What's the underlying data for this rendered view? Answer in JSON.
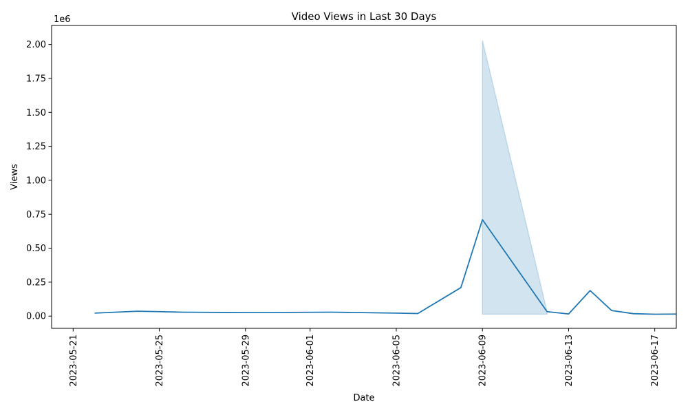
{
  "chart_data": {
    "type": "line",
    "title": "Video Views in Last 30 Days",
    "xlabel": "Date",
    "ylabel": "Views",
    "y_offset_label": "1e6",
    "x_tick_labels": [
      "2023-05-21",
      "2023-05-25",
      "2023-05-29",
      "2023-06-01",
      "2023-06-05",
      "2023-06-09",
      "2023-06-13",
      "2023-06-17"
    ],
    "y_tick_labels": [
      "0.00",
      "0.25",
      "0.50",
      "0.75",
      "1.00",
      "1.25",
      "1.50",
      "1.75",
      "2.00"
    ],
    "y_ticks": [
      0,
      250000,
      500000,
      750000,
      1000000,
      1250000,
      1500000,
      1750000,
      2000000
    ],
    "xlim": [
      "2023-05-20",
      "2023-06-18"
    ],
    "ylim": [
      -90000,
      2140000
    ],
    "grid": false,
    "series": [
      {
        "color": "#1f77b4",
        "points": [
          {
            "x": "2023-05-22",
            "y": 22000
          },
          {
            "x": "2023-05-24",
            "y": 36000
          },
          {
            "x": "2023-05-25",
            "y": 33000
          },
          {
            "x": "2023-05-26",
            "y": 29000
          },
          {
            "x": "2023-05-27",
            "y": 28000
          },
          {
            "x": "2023-05-28",
            "y": 27000
          },
          {
            "x": "2023-05-29",
            "y": 26000
          },
          {
            "x": "2023-05-30",
            "y": 26000
          },
          {
            "x": "2023-06-02",
            "y": 29000
          },
          {
            "x": "2023-06-05",
            "y": 22000
          },
          {
            "x": "2023-06-06",
            "y": 19000
          },
          {
            "x": "2023-06-08",
            "y": 210000
          },
          {
            "x": "2023-06-09",
            "y": 710000
          },
          {
            "x": "2023-06-12",
            "y": 33000
          },
          {
            "x": "2023-06-13",
            "y": 16000
          },
          {
            "x": "2023-06-14",
            "y": 188000
          },
          {
            "x": "2023-06-15",
            "y": 41000
          },
          {
            "x": "2023-06-16",
            "y": 18000
          },
          {
            "x": "2023-06-17",
            "y": 14000
          },
          {
            "x": "2023-06-18",
            "y": 15000
          }
        ]
      }
    ],
    "band": {
      "color": "#1f77b4",
      "opacity": 0.2,
      "points": [
        {
          "x": "2023-06-09",
          "low": 14000,
          "high": 2030000
        },
        {
          "x": "2023-06-12",
          "low": 14000,
          "high": 33000
        }
      ]
    }
  }
}
